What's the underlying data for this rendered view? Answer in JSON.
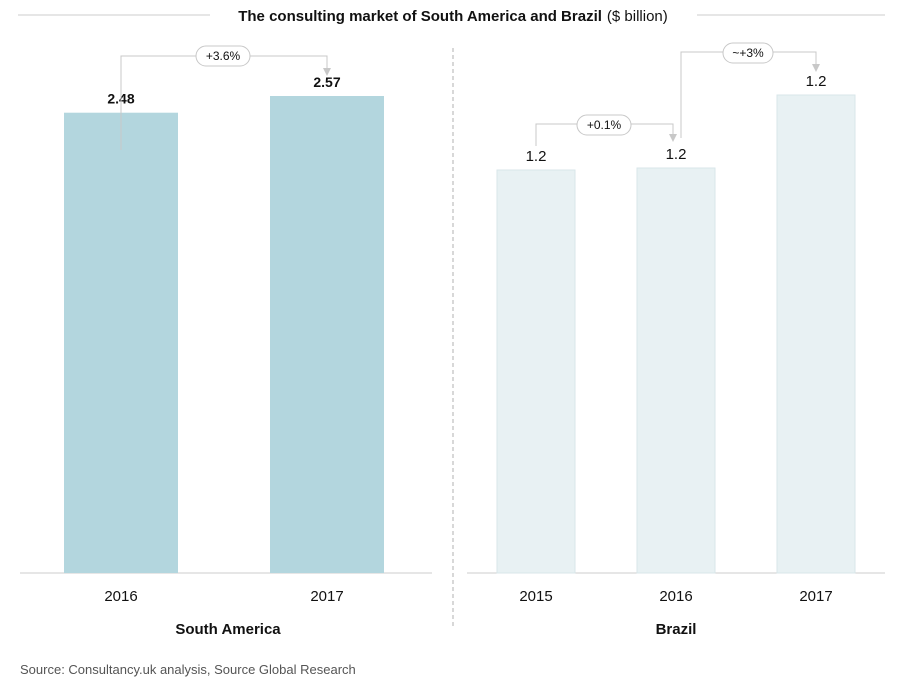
{
  "title": {
    "main": "The consulting market of South America and Brazil",
    "unit": "($ billion)"
  },
  "source": "Source: Consultancy.uk analysis, Source Global Research",
  "colors": {
    "south_america_bar": "#b3d6de",
    "brazil_bar": "#e8f1f3",
    "bar_edge": "#d8e6e9",
    "axis": "#cccccc",
    "connector": "#c8c8c8",
    "divider": "#b0b0b0"
  },
  "chart_data": [
    {
      "type": "bar",
      "panel_label": "South America",
      "categories": [
        "2016",
        "2017"
      ],
      "values": [
        2.48,
        2.57
      ],
      "value_labels": [
        "2.48",
        "2.57"
      ],
      "value_label_style": "bold",
      "growth": [
        {
          "label": "+3.6%",
          "from": 0,
          "to": 1
        }
      ]
    },
    {
      "type": "bar",
      "panel_label": "Brazil",
      "categories": [
        "2015",
        "2016",
        "2017"
      ],
      "values": [
        1.2,
        1.2,
        1.2
      ],
      "value_labels": [
        "1.2",
        "1.2",
        "1.2"
      ],
      "value_label_style": "plain",
      "growth": [
        {
          "label": "+0.1%",
          "from": 0,
          "to": 1
        },
        {
          "label": "~+3%",
          "from": 1,
          "to": 2
        }
      ]
    }
  ]
}
